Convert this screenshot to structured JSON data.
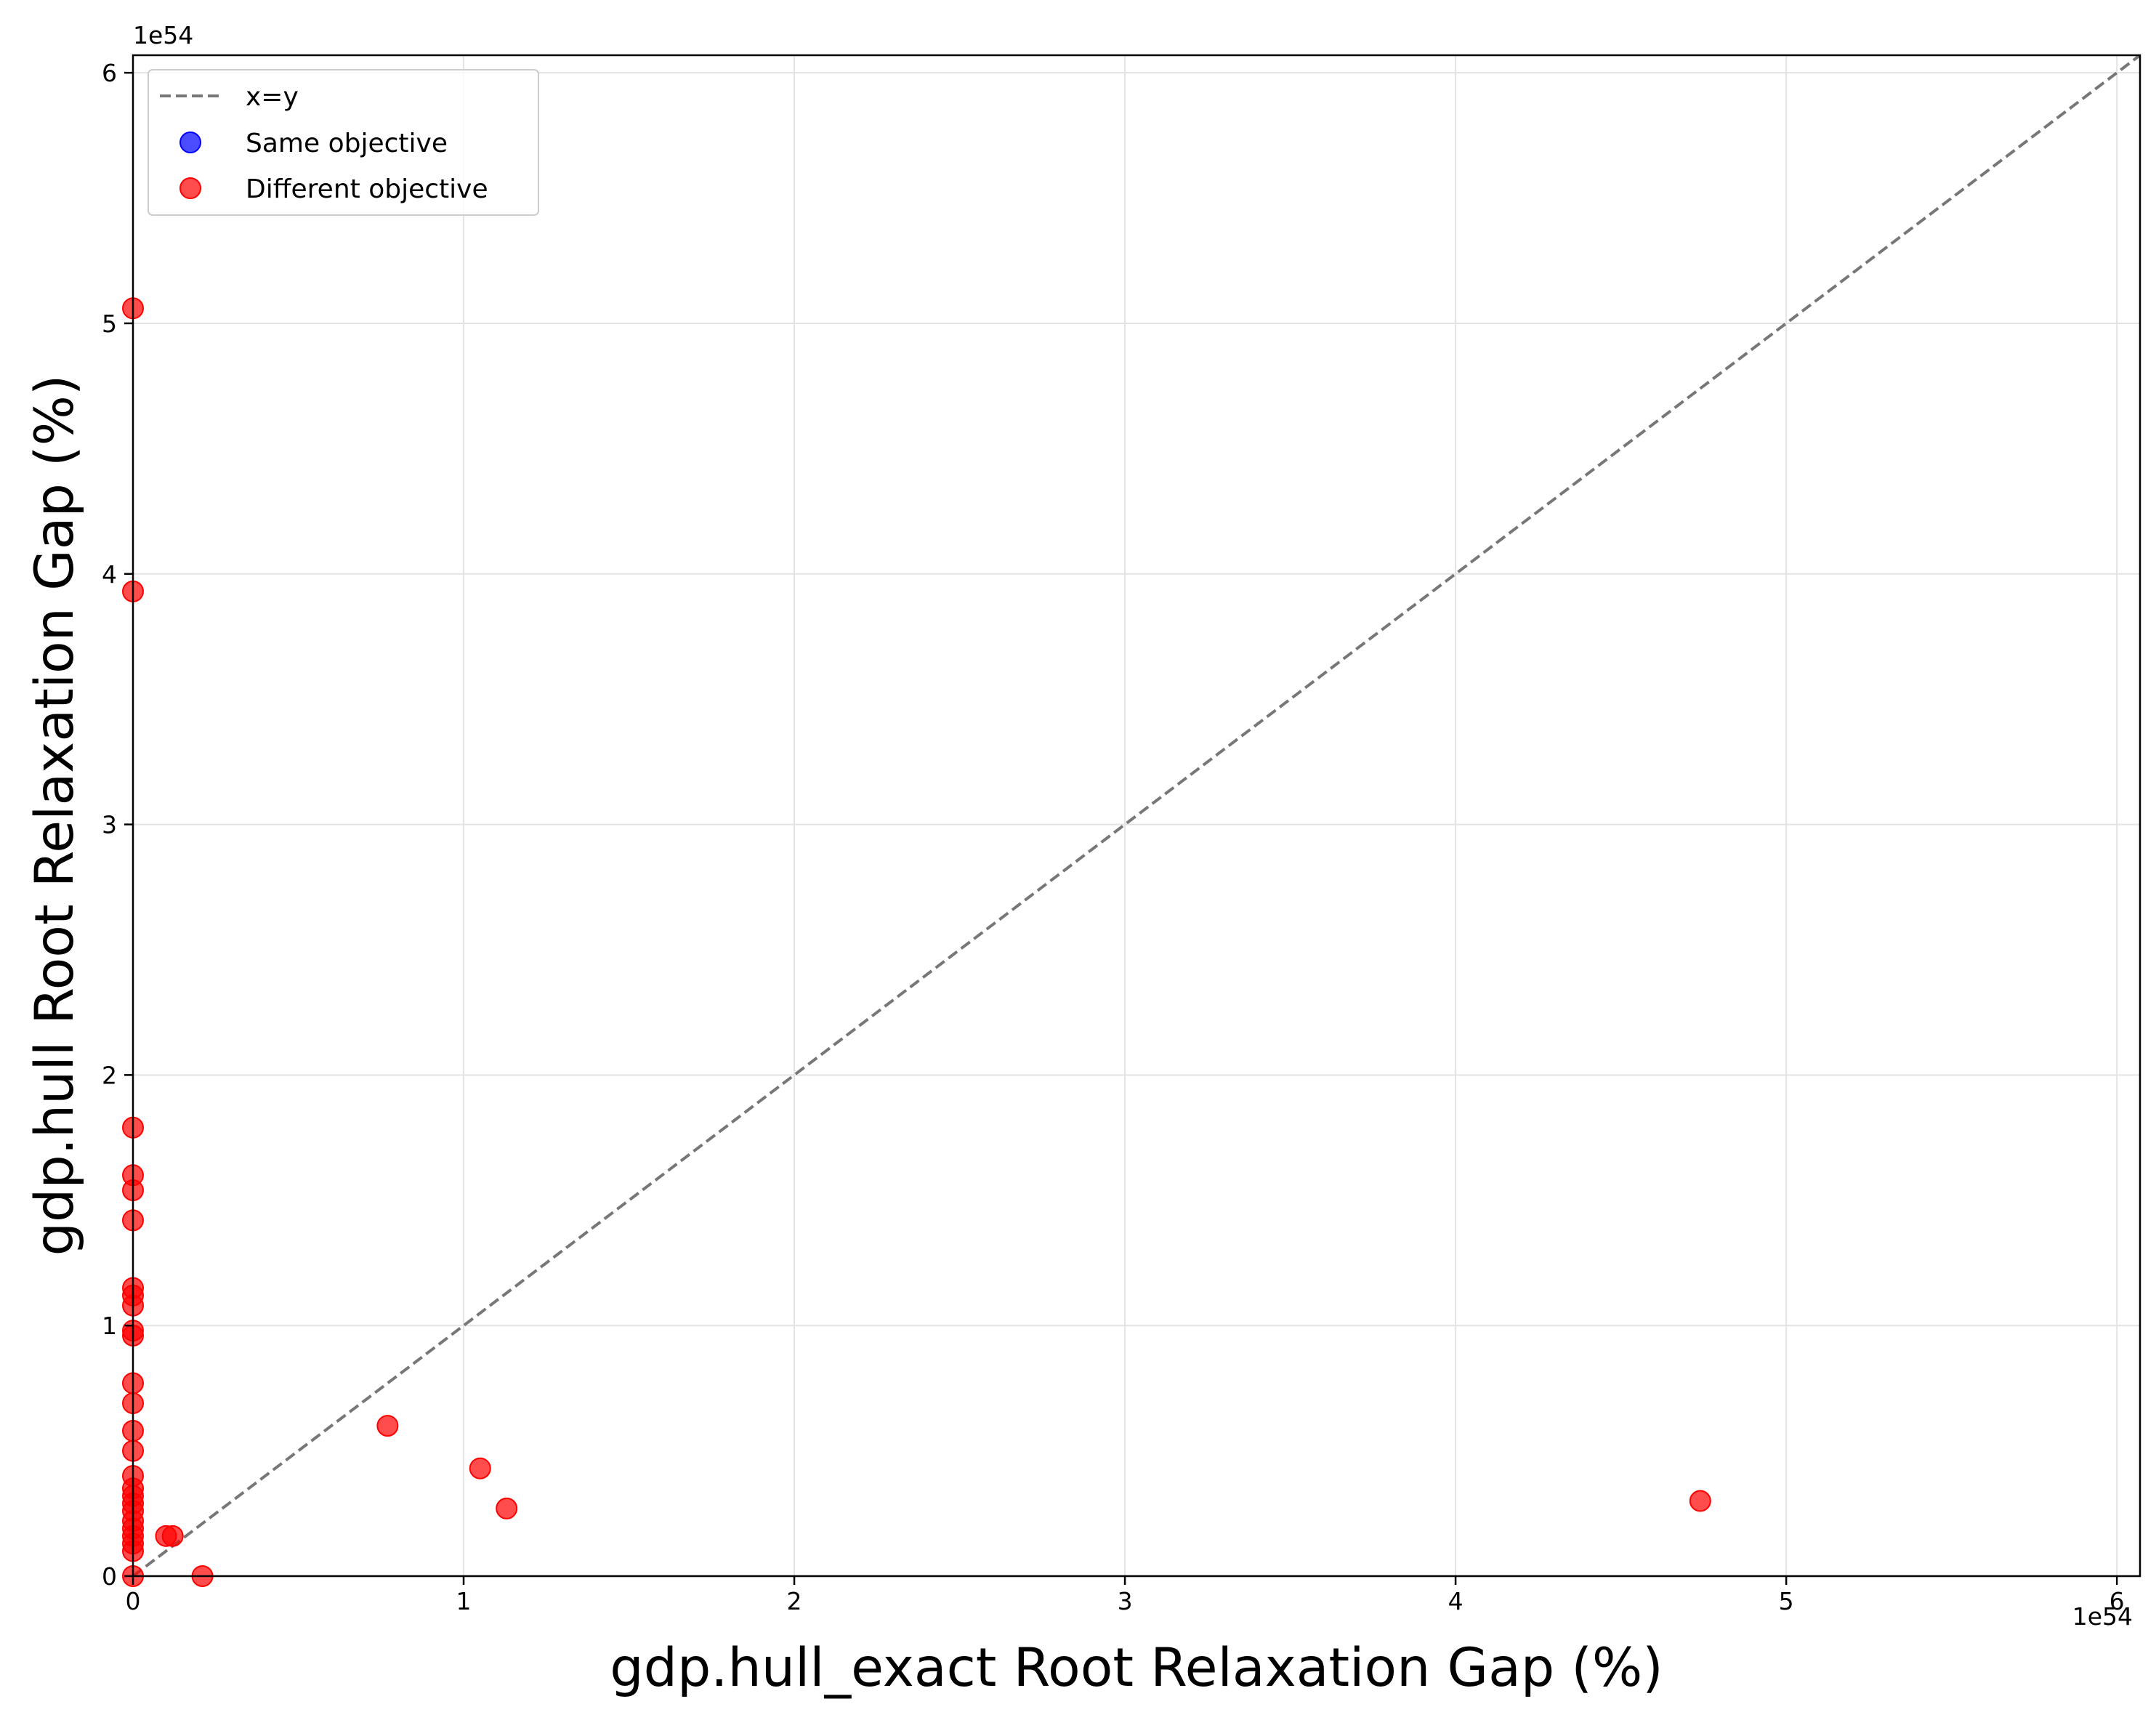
{
  "chart_data": {
    "type": "scatter",
    "title": "",
    "xlabel": "gdp.hull_exact Root Relaxation Gap (%)",
    "ylabel": "gdp.hull Root Relaxation Gap (%)",
    "x_offset_label": "1e54",
    "y_offset_label": "1e54",
    "xlim": [
      0,
      6.07
    ],
    "ylim": [
      0,
      6.07
    ],
    "x_ticks": [
      0,
      1,
      2,
      3,
      4,
      5,
      6
    ],
    "y_ticks": [
      0,
      1,
      2,
      3,
      4,
      5,
      6
    ],
    "x_tick_labels": [
      "0",
      "1",
      "2",
      "3",
      "4",
      "5",
      "6"
    ],
    "y_tick_labels": [
      "0",
      "1",
      "2",
      "3",
      "4",
      "5",
      "6"
    ],
    "grid": true,
    "legend_position": "top-left",
    "reference_line": {
      "label": "x=y",
      "color": "#777777",
      "style": "dashed"
    },
    "series": [
      {
        "name": "Same objective",
        "color": "#0000ff",
        "points": []
      },
      {
        "name": "Different objective",
        "color": "#ff0000",
        "points": [
          [
            0,
            5.06
          ],
          [
            0,
            3.93
          ],
          [
            0,
            1.79
          ],
          [
            0,
            1.6
          ],
          [
            0,
            1.54
          ],
          [
            0,
            1.42
          ],
          [
            0,
            1.15
          ],
          [
            0,
            1.12
          ],
          [
            0,
            1.08
          ],
          [
            0,
            0.98
          ],
          [
            0,
            0.96
          ],
          [
            0,
            0.77
          ],
          [
            0,
            0.69
          ],
          [
            0,
            0.58
          ],
          [
            0,
            0.5
          ],
          [
            0,
            0.4
          ],
          [
            0,
            0.35
          ],
          [
            0,
            0.32
          ],
          [
            0,
            0.29
          ],
          [
            0,
            0.26
          ],
          [
            0,
            0.22
          ],
          [
            0,
            0.19
          ],
          [
            0,
            0.16
          ],
          [
            0,
            0.13
          ],
          [
            0,
            0.1
          ],
          [
            0,
            0.0
          ],
          [
            0.77,
            0.6
          ],
          [
            1.05,
            0.43
          ],
          [
            1.13,
            0.27
          ],
          [
            4.74,
            0.3
          ],
          [
            0.1,
            0.16
          ],
          [
            0.12,
            0.16
          ],
          [
            0.21,
            0.0
          ]
        ]
      }
    ]
  }
}
